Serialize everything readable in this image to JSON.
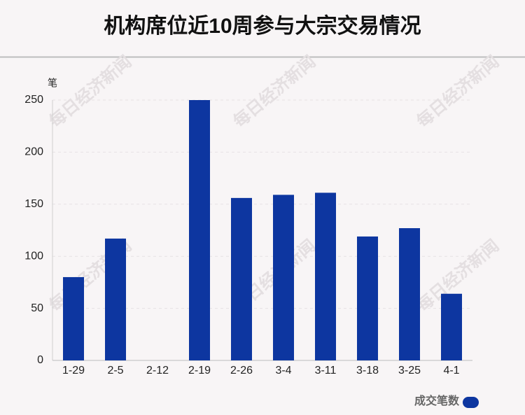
{
  "chart_data": {
    "type": "bar",
    "title": "机构席位近10周参与大宗交易情况",
    "y_unit": "笔",
    "categories": [
      "1-29",
      "2-5",
      "2-12",
      "2-19",
      "2-26",
      "3-4",
      "3-11",
      "3-18",
      "3-25",
      "4-1"
    ],
    "series": [
      {
        "name": "成交笔数",
        "color": "#0d36a0",
        "values": [
          80,
          117,
          0,
          250,
          156,
          159,
          161,
          119,
          127,
          64
        ]
      }
    ],
    "ylim": [
      0,
      250
    ],
    "yticks": [
      0,
      50,
      100,
      150,
      200,
      250
    ],
    "grid": true,
    "legend": "bottom-right",
    "watermark": "每日经济新闻"
  }
}
